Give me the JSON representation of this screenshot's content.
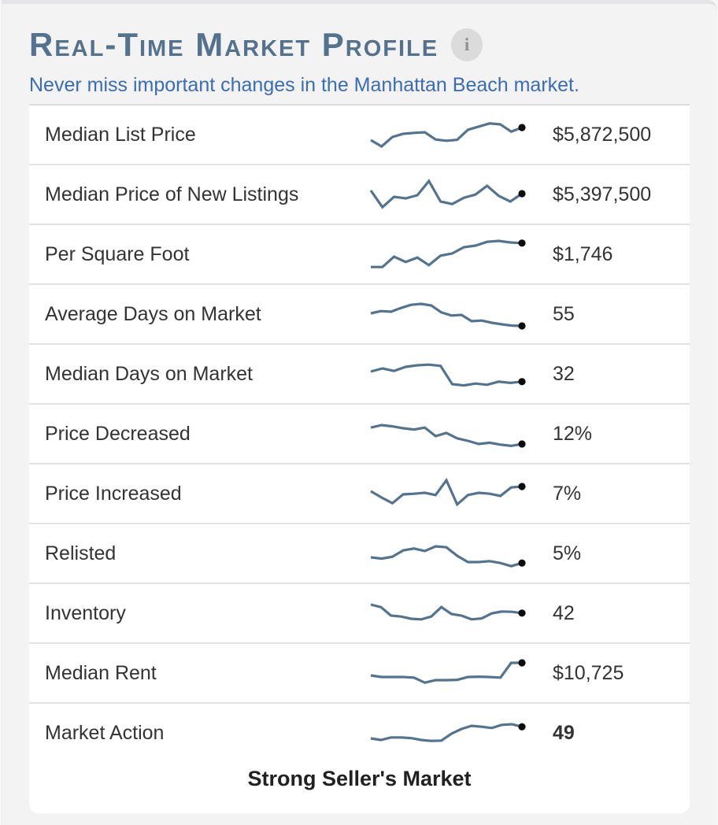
{
  "header": {
    "title": "Real-Time Market Profile",
    "info_icon_glyph": "i",
    "subtitle": "Never miss important changes in the Manhattan Beach market."
  },
  "colors": {
    "title": "#54718e",
    "subtitle_link": "#3a6db4",
    "sparkline": "#54738e",
    "sparkline_dot": "#0b0b0b",
    "row_text": "#333333",
    "card_background": "#ffffff",
    "widget_background": "#f3f3f4"
  },
  "rows": [
    {
      "label": "Median List Price",
      "value": "$5,872,500",
      "value_bold": false,
      "spark": [
        35,
        15,
        45,
        55,
        58,
        60,
        37,
        33,
        36,
        68,
        78,
        88,
        85,
        62,
        75
      ]
    },
    {
      "label": "Median Price of New Listings",
      "value": "$5,397,500",
      "value_bold": false,
      "spark": [
        65,
        12,
        45,
        40,
        50,
        95,
        30,
        22,
        42,
        52,
        80,
        48,
        30,
        55
      ]
    },
    {
      "label": "Per Square Foot",
      "value": "$1,746",
      "value_bold": false,
      "spark": [
        12,
        12,
        45,
        28,
        42,
        18,
        48,
        55,
        75,
        80,
        92,
        95,
        90,
        88
      ]
    },
    {
      "label": "Average Days on Market",
      "value": "55",
      "value_bold": false,
      "spark": [
        55,
        62,
        60,
        72,
        82,
        85,
        80,
        58,
        48,
        50,
        30,
        32,
        25,
        20,
        16,
        15
      ]
    },
    {
      "label": "Median Days on Market",
      "value": "32",
      "value_bold": false,
      "spark": [
        60,
        70,
        62,
        75,
        80,
        82,
        78,
        20,
        16,
        22,
        18,
        28,
        24,
        28
      ]
    },
    {
      "label": "Price Decreased",
      "value": "12%",
      "value_bold": false,
      "spark": [
        72,
        80,
        76,
        70,
        66,
        72,
        45,
        55,
        38,
        30,
        20,
        24,
        18,
        14,
        20
      ]
    },
    {
      "label": "Price Increased",
      "value": "7%",
      "value_bold": false,
      "spark": [
        60,
        40,
        22,
        50,
        52,
        55,
        48,
        95,
        18,
        48,
        55,
        52,
        45,
        72,
        75
      ]
    },
    {
      "label": "Relisted",
      "value": "5%",
      "value_bold": false,
      "spark": [
        40,
        36,
        42,
        62,
        68,
        60,
        75,
        72,
        45,
        25,
        25,
        28,
        22,
        12,
        22
      ]
    },
    {
      "label": "Inventory",
      "value": "42",
      "value_bold": false,
      "spark": [
        80,
        72,
        45,
        42,
        35,
        33,
        42,
        72,
        50,
        45,
        33,
        36,
        52,
        58,
        57,
        53
      ]
    },
    {
      "label": "Median Rent",
      "value": "$10,725",
      "value_bold": false,
      "spark": [
        45,
        40,
        40,
        40,
        38,
        22,
        30,
        30,
        31,
        40,
        41,
        40,
        38,
        85,
        85
      ]
    },
    {
      "label": "Market Action",
      "value": "49",
      "value_bold": true,
      "spark": [
        35,
        30,
        38,
        38,
        36,
        30,
        27,
        28,
        50,
        65,
        75,
        72,
        68,
        78,
        80,
        72
      ]
    }
  ],
  "footer": {
    "market_status": "Strong Seller's Market"
  },
  "chart_data": {
    "type": "line",
    "note_title": "Real-Time Market Profile sparklines",
    "series": [
      {
        "name": "Median List Price",
        "current": "$5,872,500",
        "values": [
          35,
          15,
          45,
          55,
          58,
          60,
          37,
          33,
          36,
          68,
          78,
          88,
          85,
          62,
          75
        ]
      },
      {
        "name": "Median Price of New Listings",
        "current": "$5,397,500",
        "values": [
          65,
          12,
          45,
          40,
          50,
          95,
          30,
          22,
          42,
          52,
          80,
          48,
          30,
          55
        ]
      },
      {
        "name": "Per Square Foot",
        "current": "$1,746",
        "values": [
          12,
          12,
          45,
          28,
          42,
          18,
          48,
          55,
          75,
          80,
          92,
          95,
          90,
          88
        ]
      },
      {
        "name": "Average Days on Market",
        "current": "55",
        "values": [
          55,
          62,
          60,
          72,
          82,
          85,
          80,
          58,
          48,
          50,
          30,
          32,
          25,
          20,
          16,
          15
        ]
      },
      {
        "name": "Median Days on Market",
        "current": "32",
        "values": [
          60,
          70,
          62,
          75,
          80,
          82,
          78,
          20,
          16,
          22,
          18,
          28,
          24,
          28
        ]
      },
      {
        "name": "Price Decreased",
        "current": "12%",
        "values": [
          72,
          80,
          76,
          70,
          66,
          72,
          45,
          55,
          38,
          30,
          20,
          24,
          18,
          14,
          20
        ]
      },
      {
        "name": "Price Increased",
        "current": "7%",
        "values": [
          60,
          40,
          22,
          50,
          52,
          55,
          48,
          95,
          18,
          48,
          55,
          52,
          45,
          72,
          75
        ]
      },
      {
        "name": "Relisted",
        "current": "5%",
        "values": [
          40,
          36,
          42,
          62,
          68,
          60,
          75,
          72,
          45,
          25,
          25,
          28,
          22,
          12,
          22
        ]
      },
      {
        "name": "Inventory",
        "current": "42",
        "values": [
          80,
          72,
          45,
          42,
          35,
          33,
          42,
          72,
          50,
          45,
          33,
          36,
          52,
          58,
          57,
          53
        ]
      },
      {
        "name": "Median Rent",
        "current": "$10,725",
        "values": [
          45,
          40,
          40,
          40,
          38,
          22,
          30,
          30,
          31,
          40,
          41,
          40,
          38,
          85,
          85
        ]
      },
      {
        "name": "Market Action",
        "current": "49",
        "values": [
          35,
          30,
          38,
          38,
          36,
          30,
          27,
          28,
          50,
          65,
          75,
          72,
          68,
          78,
          80,
          72
        ]
      }
    ]
  }
}
